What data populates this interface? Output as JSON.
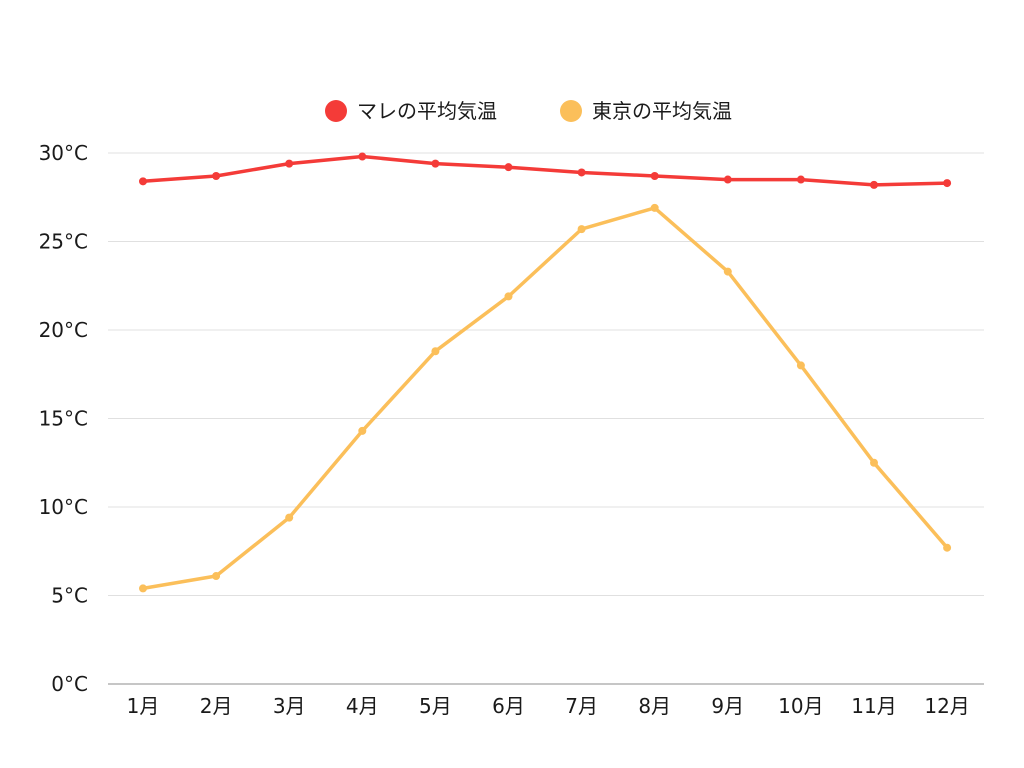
{
  "chart_data": {
    "type": "line",
    "categories": [
      "1月",
      "2月",
      "3月",
      "4月",
      "5月",
      "6月",
      "7月",
      "8月",
      "9月",
      "10月",
      "11月",
      "12月"
    ],
    "series": [
      {
        "name": "マレの平均気温",
        "color": "#f43b38",
        "values": [
          28.4,
          28.7,
          29.4,
          29.8,
          29.4,
          29.2,
          28.9,
          28.7,
          28.5,
          28.5,
          28.2,
          28.3
        ]
      },
      {
        "name": "東京の平均気温",
        "color": "#fbbf5a",
        "values": [
          5.4,
          6.1,
          9.4,
          14.3,
          18.8,
          21.9,
          25.7,
          26.9,
          23.3,
          18.0,
          12.5,
          7.7
        ]
      }
    ],
    "y_ticks": [
      "0°C",
      "5°C",
      "10°C",
      "15°C",
      "20°C",
      "25°C",
      "30°C"
    ],
    "ylim": [
      0,
      30
    ],
    "grid": "horizontal",
    "legend_position": "top-center"
  }
}
